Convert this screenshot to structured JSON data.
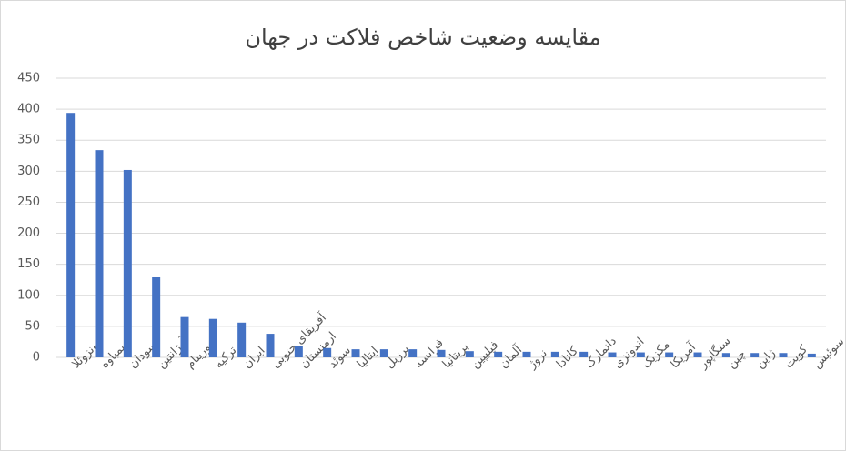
{
  "chart_data": {
    "type": "bar",
    "title": "مقایسه وضعیت شاخص فلاکت در جهان",
    "categories": [
      "ونزوئلا",
      "زیمباوه",
      "سودان",
      "آرژانتین",
      "سورینام",
      "ترکیه",
      "ایران",
      "آفریقای جنوبی",
      "ارمنستان",
      "سوئد",
      "ایتالیا",
      "برزیل",
      "فرانسه",
      "بریتانیا",
      "فیلیپین",
      "آلمان",
      "نروژ",
      "کانادا",
      "دانمارک",
      "اندونزی",
      "مکزیک",
      "آمریکا",
      "سنگاپور",
      "چین",
      "ژاپن",
      "کویت",
      "سوئیس"
    ],
    "values": [
      394,
      334,
      302,
      129,
      65,
      62,
      56,
      38,
      18,
      15,
      13,
      13,
      13,
      12,
      10,
      9,
      9,
      9,
      9,
      8,
      8,
      8,
      8,
      7,
      7,
      7,
      6
    ],
    "color": "#4472c4",
    "ylim": [
      0,
      450
    ],
    "yticks": [
      0,
      50,
      100,
      150,
      200,
      250,
      300,
      350,
      400,
      450
    ],
    "grid": true
  }
}
